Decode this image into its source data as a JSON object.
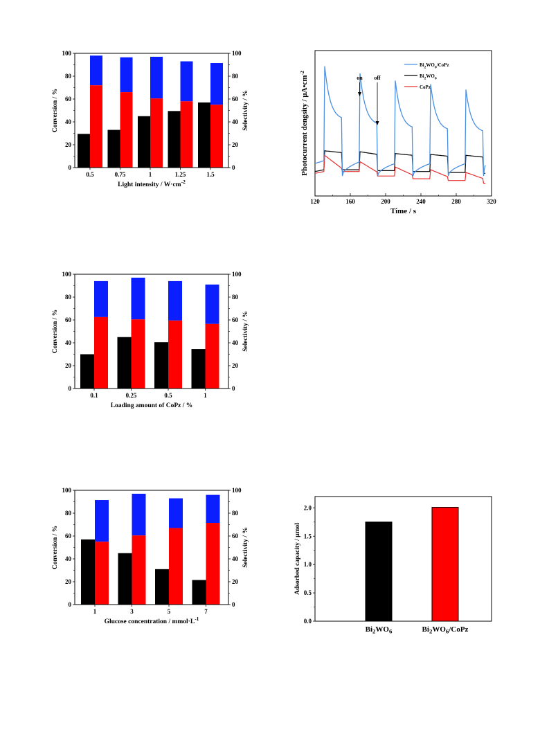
{
  "colors": {
    "black": "#000000",
    "red": "#ff0000",
    "blue": "#0a1eff",
    "curve_blue": "#4a90e2",
    "curve_red": "#e53030"
  },
  "chart_data": [
    {
      "id": "light",
      "type": "bar",
      "title": "",
      "categories": [
        "0.5",
        "0.75",
        "1",
        "1.25",
        "1.5"
      ],
      "xlabel": "Light intensity / W·cm",
      "xlabel_sup": "-2",
      "ylabel": "Conversion / %",
      "y2label": "Selectivity / %",
      "ylim": [
        0,
        100
      ],
      "yticks": [
        "0",
        "20",
        "40",
        "60",
        "80",
        "100"
      ],
      "series": [
        {
          "role": "conversion",
          "values": [
            29.5,
            33,
            45,
            49.5,
            57
          ]
        },
        {
          "role": "selectivity-red",
          "values": [
            72,
            66,
            60.5,
            58,
            55
          ]
        },
        {
          "role": "selectivity-total",
          "values": [
            98,
            96.5,
            97,
            93,
            91.5
          ]
        }
      ]
    },
    {
      "id": "photocurrent",
      "type": "line",
      "title": "",
      "xlabel": "Time / s",
      "ylabel": "Photocurrent dengsity / μA•cm",
      "ylabel_sup": "-2",
      "xlim": [
        120,
        320
      ],
      "xticks": [
        "120",
        "160",
        "200",
        "240",
        "280",
        "320"
      ],
      "legend": [
        "Bi2WO6/CoPz",
        "Bi2WO6",
        "CoPz"
      ],
      "legend_placement": "top-right",
      "annotations": [
        "on",
        "off"
      ],
      "light_on_intervals": [
        [
          131,
          151
        ],
        [
          171,
          191
        ],
        [
          211,
          231
        ],
        [
          251,
          271
        ],
        [
          291,
          311
        ]
      ],
      "series": [
        {
          "name": "Bi2WO6/CoPz",
          "on_peak": [
            64,
            60,
            56,
            54,
            51
          ],
          "on_end": [
            34,
            31,
            29,
            28,
            27
          ],
          "dark_start": [
            3,
            3,
            3,
            3,
            3
          ],
          "dark_end": [
            11,
            10,
            10,
            10,
            9
          ],
          "base": [
            10,
            10,
            10,
            10,
            10
          ]
        },
        {
          "name": "Bi2WO6",
          "on_start": [
            17,
            16.5,
            15.5,
            15,
            14.5
          ],
          "on_end": [
            16,
            15,
            14.5,
            14,
            13.5
          ],
          "dark": [
            6.5,
            6,
            5.5,
            5,
            4.5
          ]
        },
        {
          "name": "CoPz",
          "on_start": [
            14.5,
            11,
            8,
            6.5,
            5
          ],
          "on_end": [
            7,
            5,
            3.5,
            2.5,
            1.5
          ],
          "dark": [
            5.5,
            3,
            1.5,
            0.5,
            -1
          ]
        }
      ]
    },
    {
      "id": "loading",
      "type": "bar",
      "title": "",
      "categories": [
        "0.1",
        "0.25",
        "0.5",
        "1"
      ],
      "xlabel": "Loading amount of CoPz / %",
      "ylabel": "Conversion / %",
      "y2label": "Selectivity / %",
      "ylim": [
        0,
        100
      ],
      "yticks": [
        "0",
        "20",
        "40",
        "60",
        "80",
        "100"
      ],
      "series": [
        {
          "role": "conversion",
          "values": [
            30,
            45,
            40.5,
            34.5
          ]
        },
        {
          "role": "selectivity-red",
          "values": [
            62.5,
            60.5,
            59.5,
            56.5
          ]
        },
        {
          "role": "selectivity-total",
          "values": [
            94,
            97,
            94,
            91
          ]
        }
      ]
    },
    {
      "id": "glucose",
      "type": "bar",
      "title": "",
      "categories": [
        "1",
        "3",
        "5",
        "7"
      ],
      "xlabel": "Glucose concentration / mmol·L",
      "xlabel_sup": "-1",
      "ylabel": "Conversion / %",
      "y2label": "Selectivity / %",
      "ylim": [
        0,
        100
      ],
      "yticks": [
        "0",
        "20",
        "40",
        "60",
        "80",
        "100"
      ],
      "series": [
        {
          "role": "conversion",
          "values": [
            57,
            45,
            31,
            21.5
          ]
        },
        {
          "role": "selectivity-red",
          "values": [
            55,
            60.5,
            67,
            71.5
          ]
        },
        {
          "role": "selectivity-total",
          "values": [
            91.5,
            97,
            93,
            96
          ]
        }
      ]
    },
    {
      "id": "adsorbed",
      "type": "bar",
      "title": "",
      "categories": [
        "Bi2WO6",
        "Bi2WO6/CoPz"
      ],
      "xlabel": "",
      "ylabel": "Adsorbed capacity / μmol",
      "ylim": [
        0,
        2.2
      ],
      "yticks": [
        "0.0",
        "0.5",
        "1.0",
        "1.5",
        "2.0"
      ],
      "values": [
        1.75,
        2.01
      ]
    }
  ]
}
